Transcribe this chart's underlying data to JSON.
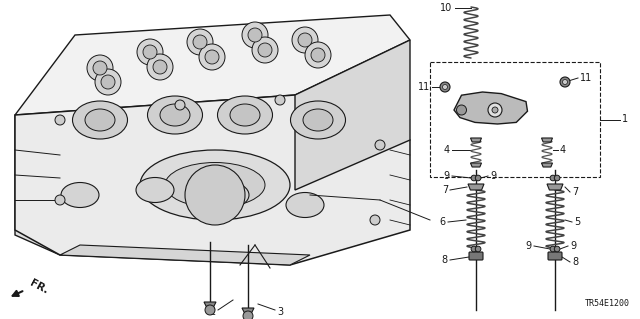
{
  "bg_color": "#ffffff",
  "fig_width": 6.4,
  "fig_height": 3.19,
  "dpi": 100,
  "code": "TR54E1200",
  "image_data": ""
}
